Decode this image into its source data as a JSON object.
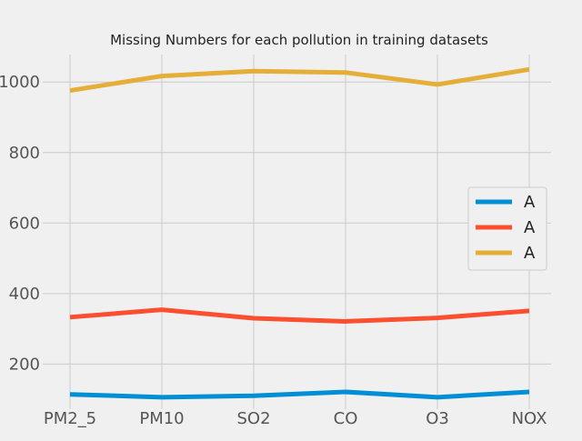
{
  "chart_data": {
    "type": "line",
    "title": "Missing Numbers for each pollution in training datasets",
    "xlabel": "",
    "ylabel": "",
    "categories": [
      "PM2_5",
      "PM10",
      "SO2",
      "CO",
      "O3",
      "NOX"
    ],
    "ylim": [
      72,
      1078
    ],
    "yticks": [
      200,
      400,
      600,
      800,
      1000
    ],
    "ytick_labels": [
      "200",
      "400",
      "600",
      "800",
      "1000"
    ],
    "grid": true,
    "legend_position": "center-right",
    "series": [
      {
        "name": "A",
        "color": "#008fd5",
        "values": [
          114,
          106,
          110,
          121,
          106,
          121
        ]
      },
      {
        "name": "A",
        "color": "#fc4f30",
        "values": [
          333,
          354,
          330,
          321,
          331,
          351
        ]
      },
      {
        "name": "A",
        "color": "#e5ae38",
        "values": [
          976,
          1017,
          1031,
          1027,
          993,
          1036
        ]
      }
    ]
  }
}
